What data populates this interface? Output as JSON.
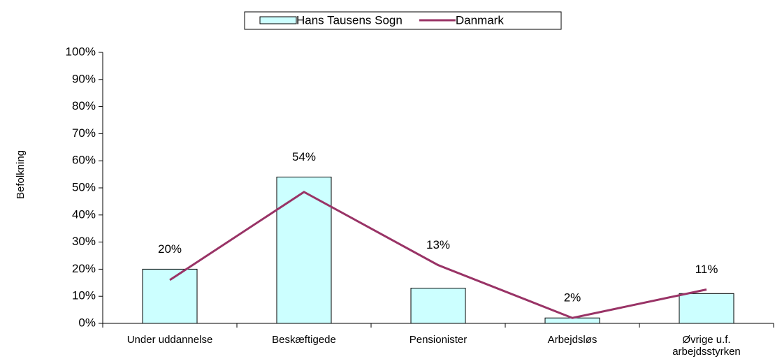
{
  "chart_data": {
    "type": "bar_line",
    "y_label": "Befolkning",
    "categories": [
      "Under uddannelse",
      "Beskæftigede",
      "Pensionister",
      "Arbejdsløs",
      "Øvrige u.f. arbejdsstyrken"
    ],
    "series": [
      {
        "name": "Hans Tausens Sogn",
        "type": "bar",
        "color": "#ccffff",
        "values": [
          20,
          54,
          13,
          2,
          11
        ],
        "value_labels": [
          "20%",
          "54%",
          "13%",
          "2%",
          "11%"
        ]
      },
      {
        "name": "Danmark",
        "type": "line",
        "color": "#993366",
        "values": [
          16,
          48.5,
          21.5,
          2,
          12.5
        ]
      }
    ],
    "ylim": [
      0,
      100
    ],
    "yticks": [
      {
        "value": 0,
        "label": "0%"
      },
      {
        "value": 10,
        "label": "10%"
      },
      {
        "value": 20,
        "label": "20%"
      },
      {
        "value": 30,
        "label": "30%"
      },
      {
        "value": 40,
        "label": "40%"
      },
      {
        "value": 50,
        "label": "50%"
      },
      {
        "value": 60,
        "label": "60%"
      },
      {
        "value": 70,
        "label": "70%"
      },
      {
        "value": 80,
        "label": "80%"
      },
      {
        "value": 90,
        "label": "90%"
      },
      {
        "value": 100,
        "label": "100%"
      }
    ],
    "legend": "top"
  }
}
